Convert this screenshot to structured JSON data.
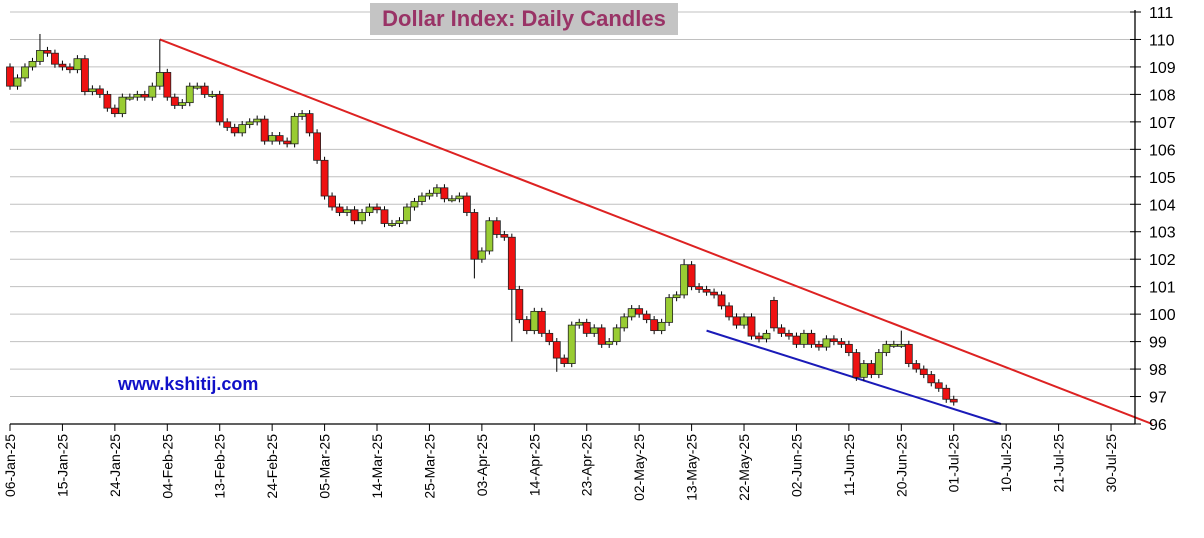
{
  "chart_data": {
    "type": "candlestick",
    "title": "Dollar Index: Daily Candles",
    "watermark": "www.kshitij.com",
    "ylim": [
      96,
      111
    ],
    "y_ticks": [
      111,
      110,
      109,
      108,
      107,
      106,
      105,
      104,
      103,
      102,
      101,
      100,
      99,
      98,
      97,
      96
    ],
    "x_tick_labels": [
      "06-Jan-25",
      "15-Jan-25",
      "24-Jan-25",
      "04-Feb-25",
      "13-Feb-25",
      "24-Feb-25",
      "05-Mar-25",
      "14-Mar-25",
      "25-Mar-25",
      "03-Apr-25",
      "14-Apr-25",
      "23-Apr-25",
      "02-May-25",
      "13-May-25",
      "22-May-25",
      "02-Jun-25",
      "11-Jun-25",
      "20-Jun-25",
      "01-Jul-25",
      "10-Jul-25",
      "21-Jul-25",
      "30-Jul-25"
    ],
    "x_tick_every_sessions": 7,
    "x_range_sessions": [
      0,
      151.5
    ],
    "first_open": 109.0,
    "close": [
      108.3,
      108.6,
      109.0,
      109.2,
      109.6,
      109.5,
      109.1,
      109.0,
      108.9,
      109.3,
      108.1,
      108.2,
      108.0,
      107.5,
      107.3,
      107.9,
      107.9,
      108.0,
      107.9,
      108.3,
      108.8,
      107.9,
      107.6,
      107.7,
      108.3,
      108.3,
      108.0,
      108.0,
      107.0,
      106.8,
      106.6,
      106.9,
      107.0,
      107.1,
      106.3,
      106.5,
      106.3,
      106.2,
      107.2,
      107.3,
      106.6,
      105.6,
      104.3,
      103.9,
      103.7,
      103.8,
      103.4,
      103.7,
      103.9,
      103.8,
      103.3,
      103.3,
      103.4,
      103.9,
      104.1,
      104.3,
      104.4,
      104.6,
      104.2,
      104.2,
      104.3,
      103.7,
      102.0,
      102.3,
      103.4,
      102.9,
      102.8,
      100.9,
      99.8,
      99.4,
      100.1,
      99.3,
      99.0,
      98.4,
      98.2,
      99.6,
      99.7,
      99.3,
      99.5,
      98.9,
      99.0,
      99.5,
      99.9,
      100.2,
      100.0,
      99.8,
      99.4,
      99.7,
      100.6,
      100.7,
      101.8,
      101.0,
      100.9,
      100.8,
      100.7,
      100.3,
      99.9,
      99.6,
      99.9,
      99.2,
      99.1,
      99.3,
      99.5,
      99.3,
      99.2,
      98.9,
      99.3,
      98.9,
      98.8,
      99.1,
      99.0,
      98.9,
      98.6,
      97.7,
      98.2,
      97.8,
      98.6,
      98.9,
      98.9,
      98.9,
      98.2,
      98.0,
      97.8,
      97.5,
      97.3,
      96.9,
      96.8
    ],
    "wick_overrides": {
      "4": {
        "h": 110.2
      },
      "20": {
        "h": 110.0
      },
      "62": {
        "l": 101.3
      },
      "67": {
        "l": 99.0
      },
      "73": {
        "l": 97.9
      },
      "90": {
        "h": 102.0
      },
      "102": {
        "o": 100.5
      },
      "119": {
        "h": 99.4
      }
    },
    "trendlines": [
      {
        "name": "resistance",
        "color": "#dd2222",
        "from": [
          20,
          110.0
        ],
        "to": [
          152.5,
          96.0
        ]
      },
      {
        "name": "support",
        "color": "#1a1ab8",
        "from": [
          93,
          99.4
        ],
        "to": [
          132.3,
          96.0
        ]
      }
    ],
    "colors": {
      "up": "#99cc33",
      "down": "#ee1111",
      "grid": "#c0c0c0"
    }
  }
}
